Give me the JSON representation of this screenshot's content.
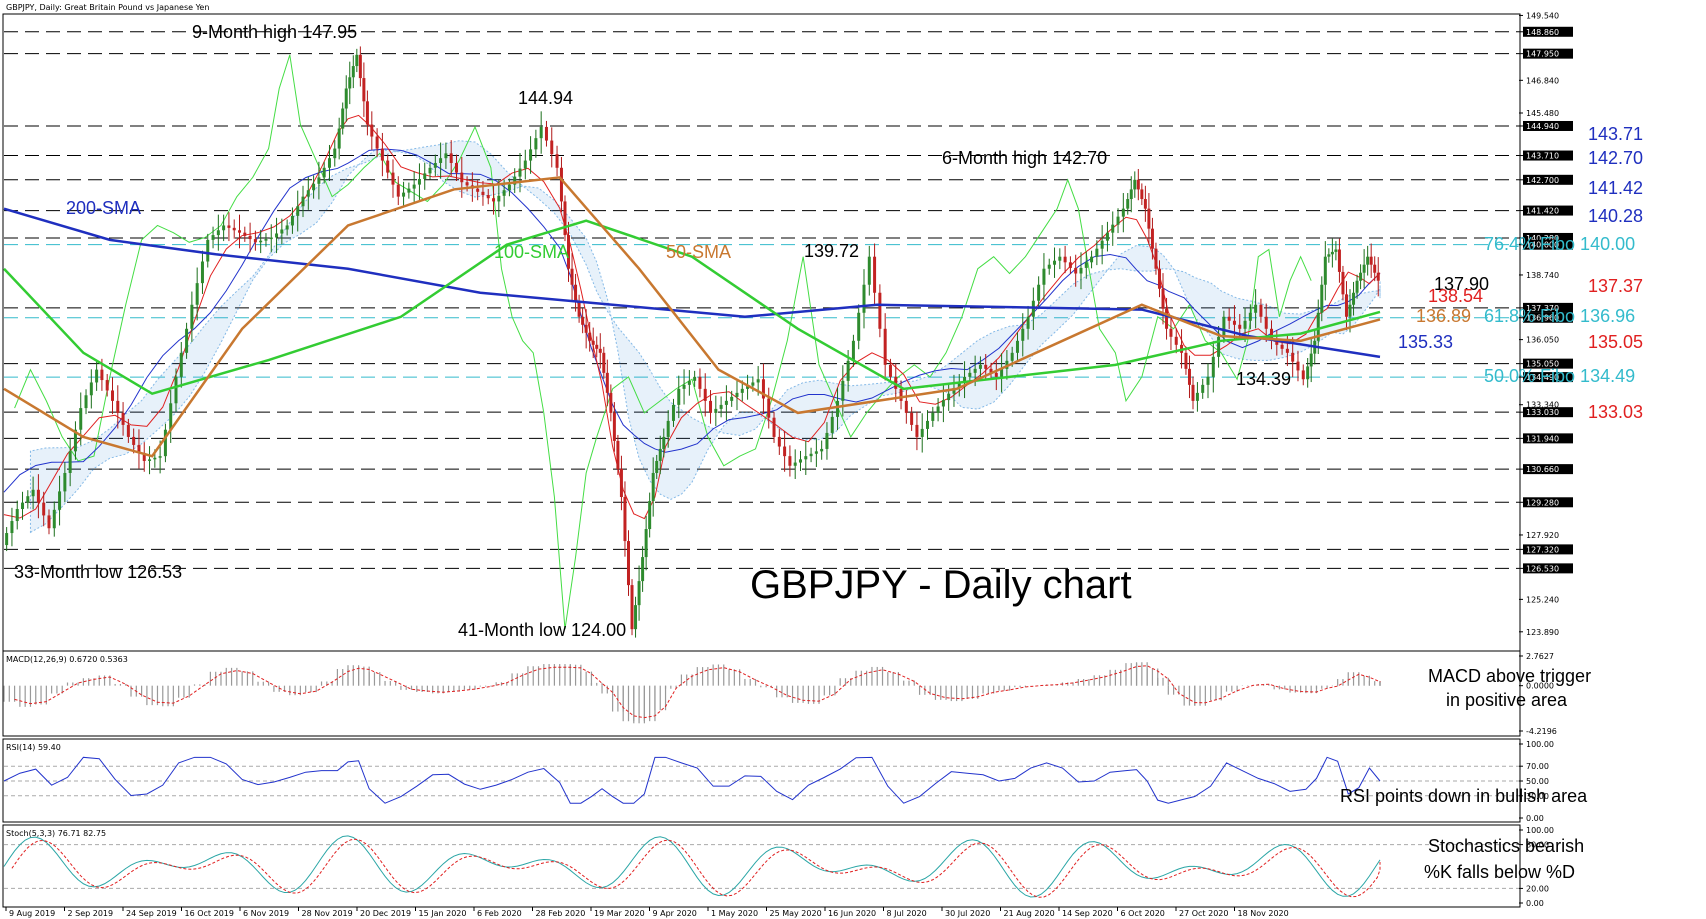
{
  "header": {
    "symbol_line": "GBPJPY, Daily:  Great Britain Pound vs Japanese Yen"
  },
  "chart_title": "GBPJPY - Daily chart",
  "chart_data": [
    {
      "type": "candlestick",
      "panel": "price",
      "title": "GBPJPY, Daily:  Great Britain Pound vs Japanese Yen",
      "ylim": [
        122.8,
        149.6
      ],
      "y_ticks": [
        "149.540",
        "148.860",
        "147.950",
        "146.840",
        "145.480",
        "144.940",
        "143.710",
        "142.700",
        "141.420",
        "140.280",
        "140.000",
        "138.740",
        "137.370",
        "136.960",
        "136.050",
        "135.050",
        "134.490",
        "133.340",
        "133.030",
        "131.940",
        "130.660",
        "129.280",
        "127.920",
        "127.320",
        "126.530",
        "125.240",
        "123.890"
      ],
      "highlighted_levels": [
        "148.860",
        "147.950",
        "144.940",
        "143.710",
        "142.700",
        "141.420",
        "140.280",
        "140.000",
        "137.370",
        "136.960",
        "135.050",
        "134.490",
        "133.030",
        "131.940",
        "130.660",
        "129.280",
        "127.320",
        "126.530"
      ],
      "x_labels": [
        "9 Aug 2019",
        "2 Sep 2019",
        "24 Sep 2019",
        "16 Oct 2019",
        "6 Nov 2019",
        "28 Nov 2019",
        "20 Dec 2019",
        "15 Jan 2020",
        "6 Feb 2020",
        "28 Feb 2020",
        "19 Mar 2020",
        "9 Apr 2020",
        "1 May 2020",
        "25 May 2020",
        "16 Jun 2020",
        "8 Jul 2020",
        "30 Jul 2020",
        "21 Aug 2020",
        "14 Sep 2020",
        "6 Oct 2020",
        "27 Oct 2020",
        "18 Nov 2020"
      ],
      "price_path": [
        {
          "x": 0,
          "y": 127.5
        },
        {
          "x": 6,
          "y": 129.0
        },
        {
          "x": 12,
          "y": 129.8
        },
        {
          "x": 18,
          "y": 128.2
        },
        {
          "x": 24,
          "y": 130.5
        },
        {
          "x": 30,
          "y": 133.2
        },
        {
          "x": 36,
          "y": 134.8
        },
        {
          "x": 42,
          "y": 133.5
        },
        {
          "x": 48,
          "y": 132.0
        },
        {
          "x": 54,
          "y": 131.0
        },
        {
          "x": 60,
          "y": 131.2
        },
        {
          "x": 66,
          "y": 134.5
        },
        {
          "x": 72,
          "y": 137.5
        },
        {
          "x": 78,
          "y": 140.2
        },
        {
          "x": 84,
          "y": 140.8
        },
        {
          "x": 90,
          "y": 140.5
        },
        {
          "x": 96,
          "y": 140.1
        },
        {
          "x": 102,
          "y": 140.3
        },
        {
          "x": 108,
          "y": 140.8
        },
        {
          "x": 114,
          "y": 142.0
        },
        {
          "x": 120,
          "y": 142.8
        },
        {
          "x": 126,
          "y": 144.0
        },
        {
          "x": 130,
          "y": 146.5
        },
        {
          "x": 134,
          "y": 147.9
        },
        {
          "x": 138,
          "y": 145.0
        },
        {
          "x": 144,
          "y": 143.5
        },
        {
          "x": 150,
          "y": 142.0
        },
        {
          "x": 156,
          "y": 142.5
        },
        {
          "x": 162,
          "y": 143.2
        },
        {
          "x": 168,
          "y": 143.8
        },
        {
          "x": 174,
          "y": 142.6
        },
        {
          "x": 180,
          "y": 142.2
        },
        {
          "x": 186,
          "y": 141.8
        },
        {
          "x": 192,
          "y": 142.5
        },
        {
          "x": 198,
          "y": 143.5
        },
        {
          "x": 204,
          "y": 144.9
        },
        {
          "x": 210,
          "y": 143.2
        },
        {
          "x": 214,
          "y": 139.0
        },
        {
          "x": 218,
          "y": 137.0
        },
        {
          "x": 222,
          "y": 136.0
        },
        {
          "x": 226,
          "y": 135.5
        },
        {
          "x": 230,
          "y": 133.0
        },
        {
          "x": 234,
          "y": 129.5
        },
        {
          "x": 238,
          "y": 124.0
        },
        {
          "x": 242,
          "y": 127.0
        },
        {
          "x": 246,
          "y": 130.5
        },
        {
          "x": 250,
          "y": 132.0
        },
        {
          "x": 256,
          "y": 134.0
        },
        {
          "x": 262,
          "y": 134.5
        },
        {
          "x": 268,
          "y": 133.0
        },
        {
          "x": 274,
          "y": 133.5
        },
        {
          "x": 280,
          "y": 134.0
        },
        {
          "x": 286,
          "y": 134.4
        },
        {
          "x": 292,
          "y": 132.0
        },
        {
          "x": 298,
          "y": 130.8
        },
        {
          "x": 304,
          "y": 131.2
        },
        {
          "x": 310,
          "y": 131.5
        },
        {
          "x": 316,
          "y": 133.5
        },
        {
          "x": 322,
          "y": 136.0
        },
        {
          "x": 328,
          "y": 139.5
        },
        {
          "x": 334,
          "y": 135.0
        },
        {
          "x": 340,
          "y": 133.5
        },
        {
          "x": 346,
          "y": 132.0
        },
        {
          "x": 352,
          "y": 133.0
        },
        {
          "x": 358,
          "y": 133.8
        },
        {
          "x": 364,
          "y": 134.5
        },
        {
          "x": 370,
          "y": 135.0
        },
        {
          "x": 376,
          "y": 134.5
        },
        {
          "x": 382,
          "y": 135.5
        },
        {
          "x": 388,
          "y": 137.0
        },
        {
          "x": 394,
          "y": 139.0
        },
        {
          "x": 400,
          "y": 139.5
        },
        {
          "x": 406,
          "y": 138.8
        },
        {
          "x": 412,
          "y": 139.5
        },
        {
          "x": 418,
          "y": 140.5
        },
        {
          "x": 424,
          "y": 141.5
        },
        {
          "x": 428,
          "y": 142.7
        },
        {
          "x": 432,
          "y": 141.5
        },
        {
          "x": 436,
          "y": 139.0
        },
        {
          "x": 440,
          "y": 136.5
        },
        {
          "x": 446,
          "y": 135.5
        },
        {
          "x": 450,
          "y": 133.5
        },
        {
          "x": 456,
          "y": 134.5
        },
        {
          "x": 462,
          "y": 137.0
        },
        {
          "x": 468,
          "y": 136.5
        },
        {
          "x": 474,
          "y": 137.5
        },
        {
          "x": 480,
          "y": 136.0
        },
        {
          "x": 486,
          "y": 135.5
        },
        {
          "x": 492,
          "y": 134.4
        },
        {
          "x": 496,
          "y": 136.0
        },
        {
          "x": 500,
          "y": 139.5
        },
        {
          "x": 504,
          "y": 139.8
        },
        {
          "x": 508,
          "y": 137.0
        },
        {
          "x": 512,
          "y": 138.5
        },
        {
          "x": 516,
          "y": 139.5
        },
        {
          "x": 520,
          "y": 138.5
        }
      ],
      "x_span": 520,
      "series": [
        {
          "name": "200-SMA",
          "color": "#1f2fbf",
          "values": [
            {
              "x": 0,
              "y": 141.5
            },
            {
              "x": 40,
              "y": 140.2
            },
            {
              "x": 80,
              "y": 139.6
            },
            {
              "x": 130,
              "y": 139.0
            },
            {
              "x": 180,
              "y": 138.0
            },
            {
              "x": 230,
              "y": 137.5
            },
            {
              "x": 280,
              "y": 137.0
            },
            {
              "x": 330,
              "y": 137.5
            },
            {
              "x": 380,
              "y": 137.4
            },
            {
              "x": 430,
              "y": 137.3
            },
            {
              "x": 470,
              "y": 136.2
            },
            {
              "x": 520,
              "y": 135.33
            }
          ]
        },
        {
          "name": "100-SMA",
          "color": "#33cc33",
          "values": [
            {
              "x": 0,
              "y": 139.0
            },
            {
              "x": 30,
              "y": 135.5
            },
            {
              "x": 56,
              "y": 133.8
            },
            {
              "x": 100,
              "y": 135.2
            },
            {
              "x": 150,
              "y": 137.0
            },
            {
              "x": 190,
              "y": 140.0
            },
            {
              "x": 220,
              "y": 141.0
            },
            {
              "x": 260,
              "y": 139.5
            },
            {
              "x": 300,
              "y": 136.5
            },
            {
              "x": 340,
              "y": 134.0
            },
            {
              "x": 380,
              "y": 134.5
            },
            {
              "x": 420,
              "y": 135.0
            },
            {
              "x": 460,
              "y": 136.0
            },
            {
              "x": 490,
              "y": 136.3
            },
            {
              "x": 520,
              "y": 137.2
            }
          ]
        },
        {
          "name": "50-SMA",
          "color": "#c87830",
          "values": [
            {
              "x": 0,
              "y": 134.0
            },
            {
              "x": 30,
              "y": 132.0
            },
            {
              "x": 56,
              "y": 131.2
            },
            {
              "x": 90,
              "y": 136.5
            },
            {
              "x": 130,
              "y": 140.8
            },
            {
              "x": 170,
              "y": 142.3
            },
            {
              "x": 210,
              "y": 142.8
            },
            {
              "x": 240,
              "y": 139.0
            },
            {
              "x": 270,
              "y": 134.8
            },
            {
              "x": 300,
              "y": 133.0
            },
            {
              "x": 330,
              "y": 133.5
            },
            {
              "x": 360,
              "y": 134.0
            },
            {
              "x": 400,
              "y": 136.0
            },
            {
              "x": 430,
              "y": 137.5
            },
            {
              "x": 460,
              "y": 136.2
            },
            {
              "x": 490,
              "y": 136.0
            },
            {
              "x": 520,
              "y": 136.89
            }
          ]
        }
      ],
      "annotations": [
        {
          "text": "9-Month high 147.95",
          "color": "#000000"
        },
        {
          "text": "144.94",
          "color": "#000000"
        },
        {
          "text": "6-Month high 142.70",
          "color": "#000000"
        },
        {
          "text": "139.72",
          "color": "#000000"
        },
        {
          "text": "137.90",
          "color": "#000000"
        },
        {
          "text": "134.39",
          "color": "#000000"
        },
        {
          "text": "33-Month low 126.53",
          "color": "#000000"
        },
        {
          "text": "41-Month low 124.00",
          "color": "#000000"
        },
        {
          "text": "200-SMA",
          "color": "#1f2fbf"
        },
        {
          "text": "100-SMA",
          "color": "#33cc33"
        },
        {
          "text": "50-SMA",
          "color": "#c87830"
        },
        {
          "text": "138.54",
          "color": "#e02020"
        },
        {
          "text": "136.89",
          "color": "#c87830"
        },
        {
          "text": "135.33",
          "color": "#1f2fbf"
        }
      ],
      "right_levels": [
        {
          "text": "143.71",
          "color": "#1f2fbf"
        },
        {
          "text": "142.70",
          "color": "#1f2fbf"
        },
        {
          "text": "141.42",
          "color": "#1f2fbf"
        },
        {
          "text": "140.28",
          "color": "#1f2fbf"
        },
        {
          "text": "76.4% Fibo 140.00",
          "color": "#33bbcc"
        },
        {
          "text": "137.37",
          "color": "#e02020"
        },
        {
          "text": "61.8% Fibo 136.96",
          "color": "#33bbcc"
        },
        {
          "text": "135.05",
          "color": "#e02020"
        },
        {
          "text": "50.0% Fibo 134.49",
          "color": "#33bbcc"
        },
        {
          "text": "133.03",
          "color": "#e02020"
        }
      ]
    },
    {
      "type": "bar",
      "panel": "macd",
      "title": "MACD(12,26,9) 0.6720 0.5363",
      "ylim": [
        -4.2196,
        2.7627
      ],
      "y_ticks": [
        "2.7627",
        "0.0000",
        "-4.2196"
      ],
      "annotation": [
        "MACD above trigger",
        "in positive area"
      ]
    },
    {
      "type": "line",
      "panel": "rsi",
      "title": "RSI(14) 59.40",
      "ylim": [
        0,
        100
      ],
      "y_ticks": [
        "100.00",
        "70.00",
        "50.00",
        "30.00",
        "0.00"
      ],
      "annotation": "RSI points down in bullish area"
    },
    {
      "type": "line",
      "panel": "stochastic",
      "title": "Stoch(5,3,3) 76.71 82.75",
      "ylim": [
        0,
        100
      ],
      "y_ticks": [
        "100.00",
        "80.00",
        "20.00",
        "0.00"
      ],
      "annotation": [
        "Stochastics bearish",
        "%K falls below %D"
      ]
    }
  ]
}
